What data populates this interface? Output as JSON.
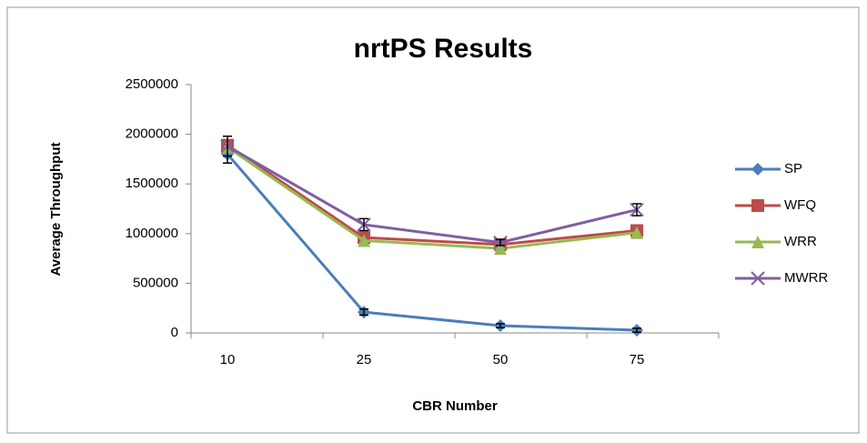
{
  "chart_data": {
    "type": "line",
    "title": "nrtPS Results",
    "x_label": "CBR Number",
    "y_label": "Average Throughput",
    "categories": [
      "10",
      "25",
      "50",
      "75"
    ],
    "series": [
      {
        "name": "SP",
        "color": "#4a7ebb",
        "marker": "diamond",
        "values": [
          1800000,
          210000,
          73000,
          27000
        ],
        "errors": [
          90000,
          30000,
          20000,
          20000
        ]
      },
      {
        "name": "WFQ",
        "color": "#be4b48",
        "marker": "square",
        "values": [
          1890000,
          960000,
          890000,
          1030000
        ]
      },
      {
        "name": "WRR",
        "color": "#98b954",
        "marker": "triangle",
        "values": [
          1870000,
          930000,
          850000,
          1010000
        ]
      },
      {
        "name": "MWRR",
        "color": "#7d60a0",
        "marker": "x",
        "values": [
          1880000,
          1090000,
          910000,
          1240000
        ],
        "errors": [
          100000,
          60000,
          30000,
          60000
        ]
      }
    ],
    "ylim": [
      0,
      2500000
    ],
    "yticks": [
      0,
      500000,
      1000000,
      1500000,
      2000000,
      2500000
    ],
    "legend": "right"
  }
}
